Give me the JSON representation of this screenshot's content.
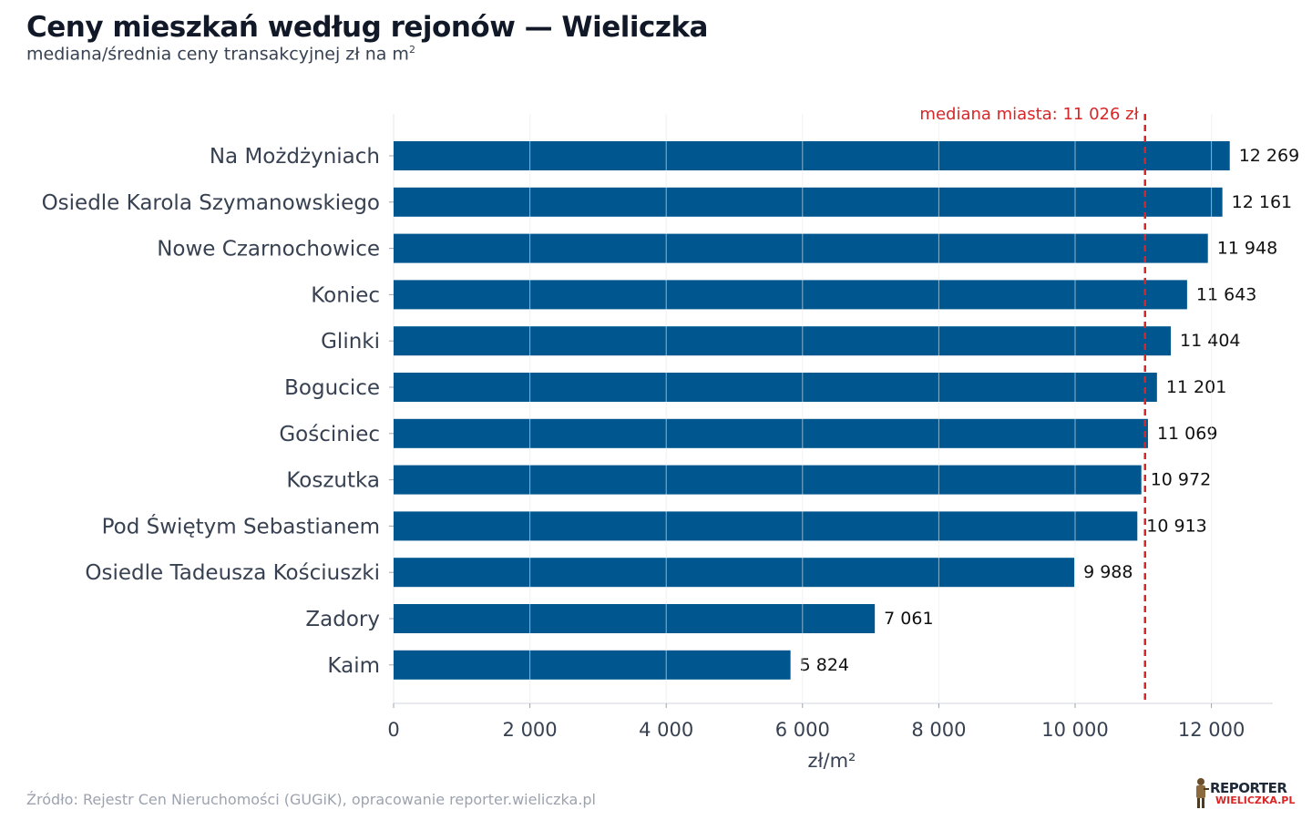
{
  "title": "Ceny mieszkań według rejonów — Wieliczka",
  "subtitle_base": "mediana/średnia ceny transakcyjnej zł na m",
  "subtitle_sup": "2",
  "source": "Źródło: Rejestr Cen Nieruchomości (GUGiK), opracowanie reporter.wieliczka.pl",
  "logo": {
    "line1": "REPORTER",
    "line2": "WIELICZKA.PL"
  },
  "chart_data": {
    "type": "bar",
    "orientation": "horizontal",
    "categories": [
      "Na Możdżyniach",
      "Osiedle Karola Szymanowskiego",
      "Nowe Czarnochowice",
      "Koniec",
      "Glinki",
      "Bogucice",
      "Gościniec",
      "Koszutka",
      "Pod Świętym Sebastianem",
      "Osiedle Tadeusza Kościuszki",
      "Zadory",
      "Kaim"
    ],
    "values": [
      12269,
      12161,
      11948,
      11643,
      11404,
      11201,
      11069,
      10972,
      10913,
      9988,
      7061,
      5824
    ],
    "value_labels": [
      "12 269",
      "12 161",
      "11 948",
      "11 643",
      "11 404",
      "11 201",
      "11 069",
      "10 972",
      "10 913",
      "9 988",
      "7 061",
      "5 824"
    ],
    "xlabel": "zł/m²",
    "ylabel": "",
    "xlim": [
      0,
      12900
    ],
    "xticks": [
      0,
      2000,
      4000,
      6000,
      8000,
      10000,
      12000
    ],
    "xtick_labels": [
      "0",
      "2 000",
      "4 000",
      "6 000",
      "8 000",
      "10 000",
      "12 000"
    ],
    "grid": "vertical",
    "reference_line": {
      "value": 11026,
      "label": "mediana miasta: 11 026 zł",
      "style": "dashed"
    },
    "colors": {
      "bar": "#00568f",
      "reference": "#d62728",
      "grid": "#e5e7eb",
      "axis_text": "#374151",
      "label_text": "#111111"
    }
  }
}
